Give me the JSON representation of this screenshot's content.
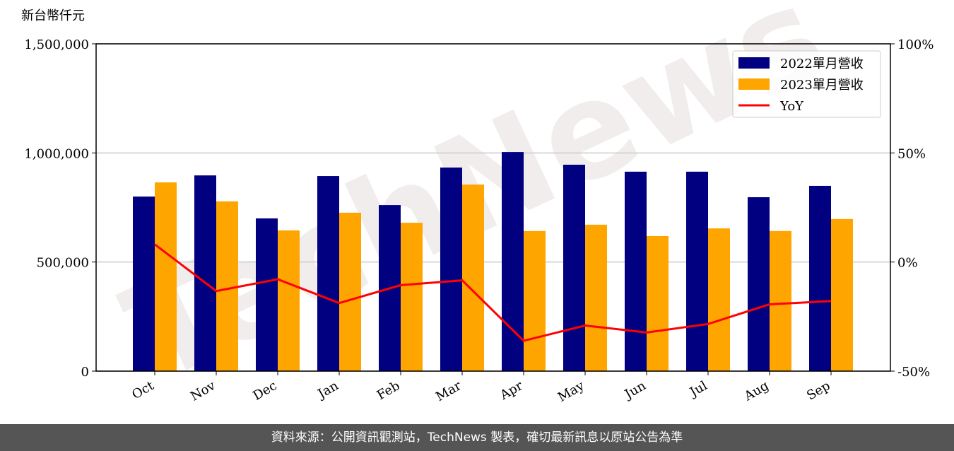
{
  "chart_data": {
    "type": "bar",
    "y_label": "新台幣仟元",
    "watermark": "TechNews",
    "categories": [
      "Oct",
      "Nov",
      "Dec",
      "Jan",
      "Feb",
      "Mar",
      "Apr",
      "May",
      "Jun",
      "Jul",
      "Aug",
      "Sep"
    ],
    "series": [
      {
        "name": "2022單月營收",
        "color": "#000080",
        "values": [
          800000,
          897000,
          700000,
          894000,
          761000,
          933000,
          1004000,
          946000,
          914000,
          914000,
          797000,
          849000
        ]
      },
      {
        "name": "2023單月營收",
        "color": "#ffa500",
        "values": [
          865000,
          778000,
          645000,
          726000,
          680000,
          855000,
          642000,
          671000,
          619000,
          654000,
          642000,
          697000
        ]
      },
      {
        "name": "YoY",
        "type": "line",
        "axis": "y2",
        "color": "#ff0000",
        "values": [
          8.1,
          -13.3,
          -7.9,
          -18.8,
          -10.6,
          -8.4,
          -36.1,
          -29.1,
          -32.3,
          -28.4,
          -19.4,
          -17.9
        ]
      }
    ],
    "ylim": [
      0,
      1500000
    ],
    "yticks": [
      0,
      {
        "value": 500000,
        "label": "500,000"
      },
      {
        "value": 1000000,
        "label": "1,000,000"
      },
      {
        "value": 1500000,
        "label": "1,500,000"
      }
    ],
    "y2lim": [
      -50,
      100
    ],
    "y2ticks": [
      {
        "value": -50,
        "label": "-50%"
      },
      {
        "value": 0,
        "label": "0%"
      },
      {
        "value": 50,
        "label": "50%"
      },
      {
        "value": 100,
        "label": "100%"
      }
    ],
    "grid": true,
    "legend": "upper right"
  },
  "footer": "資料來源：公開資訊觀測站，TechNews 製表，確切最新訊息以原站公告為準"
}
